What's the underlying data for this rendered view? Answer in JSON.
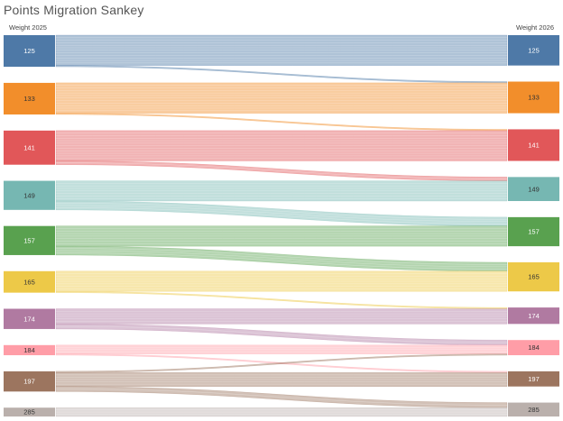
{
  "title": "Points Migration Sankey",
  "chart_data": {
    "type": "sankey",
    "title": "Points Migration Sankey",
    "left_axis_label": "Weight 2025",
    "right_axis_label": "Weight 2026",
    "groups": [
      {
        "label": "125",
        "color": "#4e79a7",
        "text_color": "#ffffff"
      },
      {
        "label": "133",
        "color": "#f28e2b",
        "text_color": "#333333"
      },
      {
        "label": "141",
        "color": "#e15759",
        "text_color": "#ffffff"
      },
      {
        "label": "149",
        "color": "#76b7b2",
        "text_color": "#333333"
      },
      {
        "label": "157",
        "color": "#59a14f",
        "text_color": "#ffffff"
      },
      {
        "label": "165",
        "color": "#edc948",
        "text_color": "#333333"
      },
      {
        "label": "174",
        "color": "#b07aa1",
        "text_color": "#ffffff"
      },
      {
        "label": "184",
        "color": "#ff9da7",
        "text_color": "#333333"
      },
      {
        "label": "197",
        "color": "#9c755f",
        "text_color": "#ffffff"
      },
      {
        "label": "285",
        "color": "#bab0ac",
        "text_color": "#333333"
      }
    ],
    "flows": [
      {
        "from": "125",
        "to": "125",
        "value": 24
      },
      {
        "from": "125",
        "to": "133",
        "value": 1
      },
      {
        "from": "133",
        "to": "133",
        "value": 24
      },
      {
        "from": "133",
        "to": "141",
        "value": 1
      },
      {
        "from": "141",
        "to": "141",
        "value": 24
      },
      {
        "from": "141",
        "to": "149",
        "value": 3
      },
      {
        "from": "149",
        "to": "149",
        "value": 16
      },
      {
        "from": "149",
        "to": "157",
        "value": 7
      },
      {
        "from": "157",
        "to": "157",
        "value": 16
      },
      {
        "from": "157",
        "to": "165",
        "value": 7
      },
      {
        "from": "165",
        "to": "165",
        "value": 16
      },
      {
        "from": "165",
        "to": "174",
        "value": 1
      },
      {
        "from": "174",
        "to": "174",
        "value": 12
      },
      {
        "from": "174",
        "to": "184",
        "value": 4
      },
      {
        "from": "184",
        "to": "184",
        "value": 7
      },
      {
        "from": "184",
        "to": "197",
        "value": 1
      },
      {
        "from": "197",
        "to": "184",
        "value": 1
      },
      {
        "from": "197",
        "to": "197",
        "value": 11
      },
      {
        "from": "197",
        "to": "285",
        "value": 4
      },
      {
        "from": "285",
        "to": "285",
        "value": 7
      }
    ]
  }
}
